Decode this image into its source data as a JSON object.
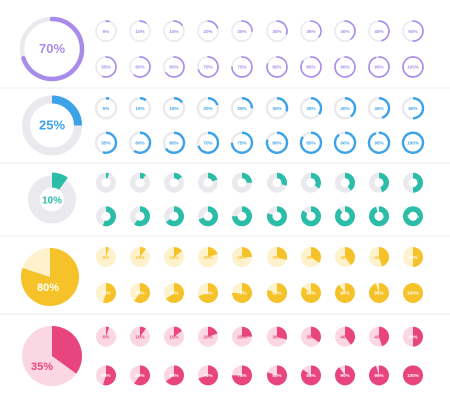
{
  "rows": [
    {
      "id": "purple-ring",
      "style": "ring",
      "big_label": "70%",
      "big_value": 70,
      "color": "#A98BEA",
      "track": "#EAEAEE",
      "label_color": "#A98BEA",
      "small_values": [
        5,
        10,
        15,
        20,
        25,
        30,
        35,
        40,
        45,
        50,
        55,
        60,
        65,
        70,
        75,
        80,
        85,
        90,
        95,
        100
      ],
      "small_labels": [
        "5%",
        "10%",
        "15%",
        "20%",
        "25%",
        "30%",
        "35%",
        "40%",
        "45%",
        "50%",
        "55%",
        "60%",
        "65%",
        "70%",
        "75%",
        "80%",
        "85%",
        "90%",
        "95%",
        "100%"
      ]
    },
    {
      "id": "blue-ring",
      "style": "thick-ring",
      "big_label": "25%",
      "big_value": 25,
      "color": "#3DA3E8",
      "track": "#EAEAEE",
      "label_color": "#3DA3E8",
      "small_values": [
        5,
        10,
        15,
        20,
        25,
        30,
        35,
        40,
        45,
        50,
        55,
        60,
        65,
        70,
        75,
        80,
        85,
        90,
        95,
        100
      ],
      "small_labels": [
        "5%",
        "10%",
        "15%",
        "20%",
        "25%",
        "30%",
        "35%",
        "40%",
        "45%",
        "50%",
        "55%",
        "60%",
        "65%",
        "70%",
        "75%",
        "80%",
        "85%",
        "90%",
        "95%",
        "100%"
      ]
    },
    {
      "id": "teal-donut",
      "style": "donut",
      "big_label": "10%",
      "big_value": 10,
      "color": "#2BBDA8",
      "track": "#EAEAEE",
      "label_color": "#2BBDA8",
      "small_values": [
        5,
        10,
        15,
        20,
        25,
        30,
        35,
        40,
        45,
        50,
        55,
        60,
        65,
        70,
        75,
        80,
        85,
        90,
        95,
        100
      ],
      "small_labels": [
        "5%",
        "10%",
        "15%",
        "20%",
        "25%",
        "30%",
        "35%",
        "40%",
        "45%",
        "50%",
        "55%",
        "60%",
        "65%",
        "70%",
        "75%",
        "80%",
        "85%",
        "90%",
        "95%",
        "100%"
      ]
    },
    {
      "id": "yellow-pie",
      "style": "pie",
      "big_label": "80%",
      "big_value": 80,
      "color": "#F6C229",
      "track": "#FDF2CC",
      "label_color": "#ffffff",
      "small_values": [
        5,
        10,
        15,
        20,
        25,
        30,
        35,
        40,
        45,
        50,
        55,
        60,
        65,
        70,
        75,
        80,
        85,
        90,
        95,
        100
      ],
      "small_labels": [
        "5%",
        "10%",
        "15%",
        "20%",
        "25%",
        "30%",
        "35%",
        "40%",
        "45%",
        "50%",
        "55%",
        "60%",
        "65%",
        "70%",
        "75%",
        "80%",
        "85%",
        "90%",
        "95%",
        "100%"
      ]
    },
    {
      "id": "pink-pie",
      "style": "pie",
      "big_label": "35%",
      "big_value": 35,
      "color": "#E8457F",
      "track": "#FBD7E4",
      "label_color": "#E8457F",
      "small_values": [
        5,
        10,
        15,
        20,
        25,
        30,
        35,
        40,
        45,
        50,
        55,
        60,
        65,
        70,
        75,
        80,
        85,
        90,
        95,
        100
      ],
      "small_labels": [
        "5%",
        "10%",
        "15%",
        "20%",
        "25%",
        "30%",
        "35%",
        "40%",
        "45%",
        "50%",
        "55%",
        "60%",
        "65%",
        "70%",
        "75%",
        "80%",
        "85%",
        "90%",
        "95%",
        "100%"
      ]
    }
  ]
}
